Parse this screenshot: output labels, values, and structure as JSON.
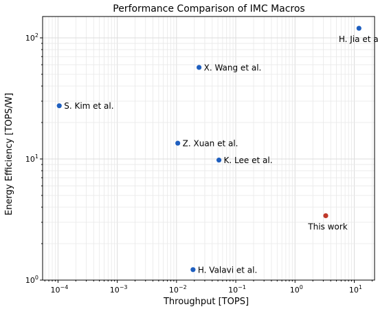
{
  "chart_data": {
    "type": "scatter",
    "title": "Performance Comparison of IMC Macros",
    "xlabel": "Throughput [TOPS]",
    "ylabel": "Energy Efficiency [TOPS/W]",
    "x_scale": "log",
    "y_scale": "log",
    "xlim": [
      5.5e-05,
      22
    ],
    "ylim": [
      1,
      150
    ],
    "grid": "on, major and minor",
    "x_ticks": [
      {
        "value": 0.0001,
        "base": "10",
        "exp": "−4"
      },
      {
        "value": 0.001,
        "base": "10",
        "exp": "−3"
      },
      {
        "value": 0.01,
        "base": "10",
        "exp": "−2"
      },
      {
        "value": 0.1,
        "base": "10",
        "exp": "−1"
      },
      {
        "value": 1,
        "base": "10",
        "exp": "0"
      },
      {
        "value": 10,
        "base": "10",
        "exp": "1"
      }
    ],
    "y_ticks": [
      {
        "value": 1,
        "base": "10",
        "exp": "0"
      },
      {
        "value": 10,
        "base": "10",
        "exp": "1"
      },
      {
        "value": 100,
        "base": "10",
        "exp": "2"
      }
    ],
    "points": [
      {
        "label": "S. Kim et al.",
        "x": 0.000105,
        "y": 27.5,
        "color": "#1f5fbf"
      },
      {
        "label": "X. Wang et al.",
        "x": 0.024,
        "y": 57,
        "color": "#1f5fbf"
      },
      {
        "label": "Z. Xuan et al.",
        "x": 0.0105,
        "y": 13.5,
        "color": "#1f5fbf"
      },
      {
        "label": "K. Lee et al.",
        "x": 0.052,
        "y": 9.8,
        "color": "#1f5fbf"
      },
      {
        "label": "H. Jia et al.",
        "x": 12,
        "y": 120,
        "color": "#1f5fbf"
      },
      {
        "label": "H. Valavi et al.",
        "x": 0.019,
        "y": 1.22,
        "color": "#1f5fbf"
      },
      {
        "label": "This work",
        "x": 3.3,
        "y": 3.4,
        "color": "#c0392b"
      }
    ]
  }
}
